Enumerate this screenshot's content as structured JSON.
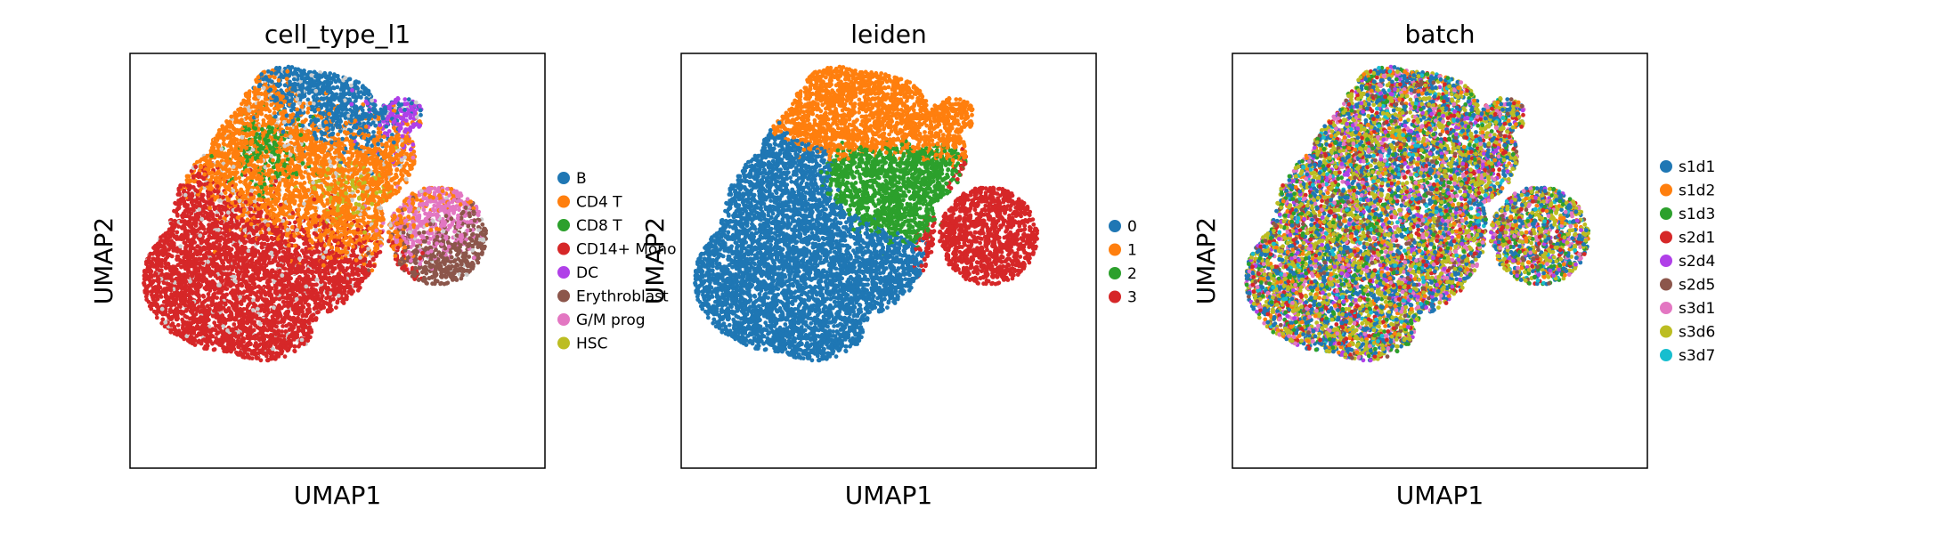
{
  "chart_data": [
    {
      "type": "scatter",
      "title": "cell_type_l1",
      "xlabel": "UMAP1",
      "ylabel": "UMAP2",
      "ticks": "none",
      "legend_placement": "right-outside",
      "series": [
        {
          "name": "B",
          "color": "#1f77b4",
          "region": "upper-center-top"
        },
        {
          "name": "CD4 T",
          "color": "#ff7f0e",
          "region": "upper-center"
        },
        {
          "name": "CD8 T",
          "color": "#2ca02c",
          "region": "center"
        },
        {
          "name": "CD14+ Mono",
          "color": "#d62728",
          "region": "lower-left"
        },
        {
          "name": "DC",
          "color": "#b040e8",
          "region": "top-right-small and lower-middle"
        },
        {
          "name": "Erythroblast",
          "color": "#8c564b",
          "region": "right-lobe"
        },
        {
          "name": "G/M prog",
          "color": "#e377c2",
          "region": "right-lobe"
        },
        {
          "name": "HSC",
          "color": "#bcbd22",
          "region": "center-upper"
        }
      ],
      "background_unlabeled_color": "#cccccc"
    },
    {
      "type": "scatter",
      "title": "leiden",
      "xlabel": "UMAP1",
      "ylabel": "UMAP2",
      "ticks": "none",
      "legend_placement": "right-outside",
      "series": [
        {
          "name": "0",
          "color": "#1f77b4",
          "region": "left and lower"
        },
        {
          "name": "1",
          "color": "#ff7f0e",
          "region": "top"
        },
        {
          "name": "2",
          "color": "#2ca02c",
          "region": "center"
        },
        {
          "name": "3",
          "color": "#d62728",
          "region": "right lobe"
        }
      ]
    },
    {
      "type": "scatter",
      "title": "batch",
      "xlabel": "UMAP1",
      "ylabel": "UMAP2",
      "ticks": "none",
      "legend_placement": "right-outside",
      "series": [
        {
          "name": "s1d1",
          "color": "#1f77b4"
        },
        {
          "name": "s1d2",
          "color": "#ff7f0e"
        },
        {
          "name": "s1d3",
          "color": "#2ca02c"
        },
        {
          "name": "s2d1",
          "color": "#d62728"
        },
        {
          "name": "s2d4",
          "color": "#b040e8"
        },
        {
          "name": "s2d5",
          "color": "#8c564b"
        },
        {
          "name": "s3d1",
          "color": "#e377c2"
        },
        {
          "name": "s3d6",
          "color": "#bcbd22"
        },
        {
          "name": "s3d7",
          "color": "#17becf"
        }
      ]
    }
  ]
}
